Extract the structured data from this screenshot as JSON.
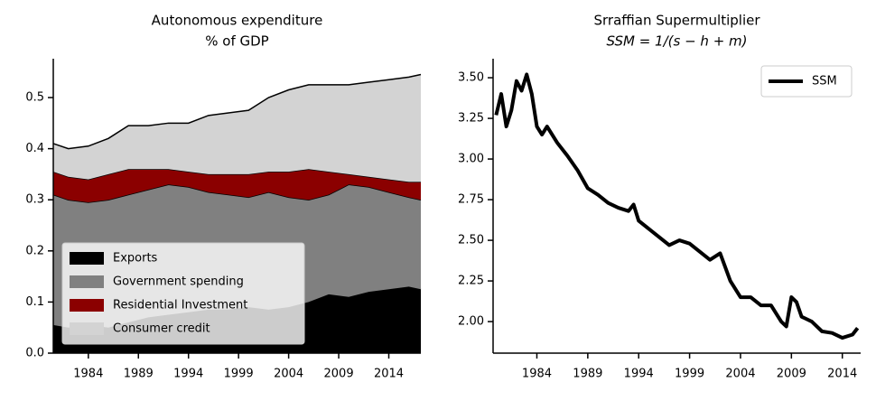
{
  "chart_data": [
    {
      "type": "stackedarea",
      "title": "Autonomous expenditure",
      "subtitle": "% of GDP",
      "x": [
        1980.5,
        1982,
        1984,
        1986,
        1988,
        1990,
        1992,
        1994,
        1996,
        1998,
        2000,
        2002,
        2004,
        2006,
        2008,
        2010,
        2012,
        2014,
        2016,
        2017.2
      ],
      "series": [
        {
          "name": "Exports",
          "color": "#000000",
          "values": [
            0.055,
            0.05,
            0.055,
            0.05,
            0.06,
            0.07,
            0.075,
            0.08,
            0.085,
            0.085,
            0.09,
            0.085,
            0.09,
            0.1,
            0.115,
            0.11,
            0.12,
            0.125,
            0.13,
            0.125
          ]
        },
        {
          "name": "Government spending",
          "color": "#808080",
          "values": [
            0.255,
            0.25,
            0.24,
            0.25,
            0.25,
            0.25,
            0.255,
            0.245,
            0.23,
            0.225,
            0.215,
            0.23,
            0.215,
            0.2,
            0.195,
            0.22,
            0.205,
            0.19,
            0.175,
            0.175
          ]
        },
        {
          "name": "Residential Investment",
          "color": "#8b0000",
          "values": [
            0.045,
            0.045,
            0.045,
            0.05,
            0.05,
            0.04,
            0.03,
            0.03,
            0.035,
            0.04,
            0.045,
            0.04,
            0.05,
            0.06,
            0.045,
            0.02,
            0.02,
            0.025,
            0.03,
            0.035
          ]
        },
        {
          "name": "Consumer credit",
          "color": "#d3d3d3",
          "values": [
            0.055,
            0.055,
            0.065,
            0.07,
            0.085,
            0.085,
            0.09,
            0.095,
            0.115,
            0.12,
            0.125,
            0.145,
            0.16,
            0.165,
            0.17,
            0.175,
            0.185,
            0.195,
            0.205,
            0.21
          ]
        }
      ],
      "xlim": [
        1980.5,
        2017.2
      ],
      "ylim": [
        0,
        0.576
      ],
      "xticks": [
        1984,
        1989,
        1994,
        1999,
        2004,
        2009,
        2014
      ],
      "yticks": [
        {
          "value": 0,
          "label": "0.0"
        },
        0.1,
        0.2,
        0.3,
        0.4,
        0.5
      ],
      "legend": "lower left"
    },
    {
      "type": "line",
      "title": "Srraffian Supermultiplier",
      "subtitle": "SSM = 1/(s − h + m)",
      "x": [
        1980,
        1980.5,
        1981,
        1981.5,
        1982,
        1982.5,
        1983,
        1983.5,
        1984,
        1984.5,
        1985,
        1986,
        1987,
        1988,
        1989,
        1990,
        1991,
        1992,
        1993,
        1993.5,
        1994,
        1995,
        1996,
        1997,
        1998,
        1999,
        2000,
        2001,
        2002,
        2003,
        2004,
        2005,
        2006,
        2007,
        2008,
        2008.5,
        2009,
        2009.5,
        2010,
        2011,
        2012,
        2013,
        2014,
        2015,
        2015.5
      ],
      "series": [
        {
          "name": "SSM",
          "color": "#000000",
          "values": [
            3.27,
            3.4,
            3.2,
            3.3,
            3.48,
            3.42,
            3.52,
            3.4,
            3.2,
            3.15,
            3.2,
            3.1,
            3.02,
            2.93,
            2.82,
            2.78,
            2.73,
            2.7,
            2.68,
            2.72,
            2.62,
            2.57,
            2.52,
            2.47,
            2.5,
            2.48,
            2.43,
            2.38,
            2.42,
            2.25,
            2.15,
            2.15,
            2.1,
            2.1,
            2.0,
            1.97,
            2.15,
            2.12,
            2.03,
            2.0,
            1.94,
            1.93,
            1.9,
            1.92,
            1.96
          ]
        }
      ],
      "xlim": [
        1979.7,
        2015.8
      ],
      "ylim": [
        1.806,
        3.617
      ],
      "xticks": [
        1984,
        1989,
        1994,
        1999,
        2004,
        2009,
        2014
      ],
      "yticks": [
        {
          "value": 2,
          "label": "2.00"
        },
        2.25,
        {
          "value": 2.5,
          "label": "2.50"
        },
        2.75,
        {
          "value": 3,
          "label": "3.00"
        },
        3.25,
        {
          "value": 3.5,
          "label": "3.50"
        }
      ],
      "legend": "upper right"
    }
  ]
}
